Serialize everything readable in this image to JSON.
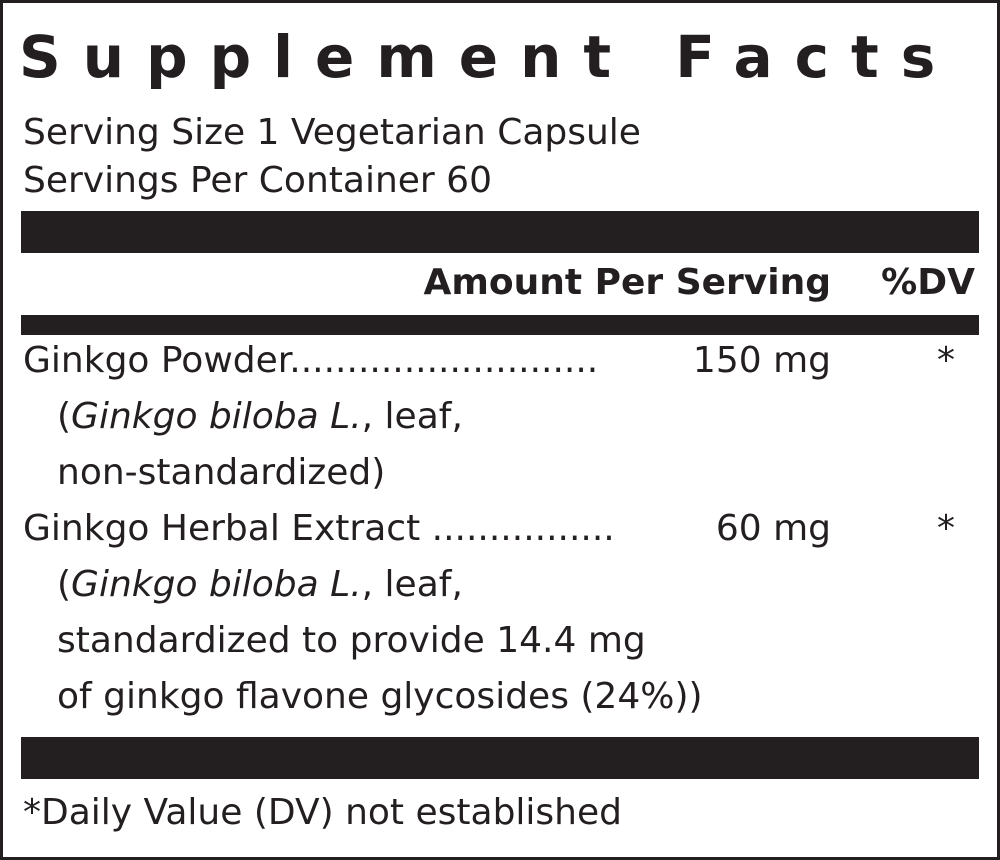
{
  "title": "Supplement Facts",
  "serving_size": "Serving Size 1 Vegetarian Capsule",
  "servings_per_container": "Servings Per Container 60",
  "header": {
    "amount": "Amount Per Serving",
    "dv": "%DV"
  },
  "ingredients": [
    {
      "name": "Ginkgo Powder",
      "dots": "...........................",
      "amount": "150 mg",
      "dv": "*",
      "detail": [
        "(",
        "Ginkgo biloba L.",
        ", leaf,"
      ],
      "detail2": [
        "non-standardized)"
      ]
    },
    {
      "name": "Ginkgo Herbal Extract",
      "dots": " ................",
      "amount": "60 mg",
      "dv": "*",
      "detail": [
        "(",
        "Ginkgo biloba L.",
        ", leaf,"
      ],
      "detail2": [
        "standardized to provide 14.4 mg",
        "of ginkgo flavone glycosides (24%))"
      ]
    }
  ],
  "footnote": "*Daily Value (DV) not established"
}
